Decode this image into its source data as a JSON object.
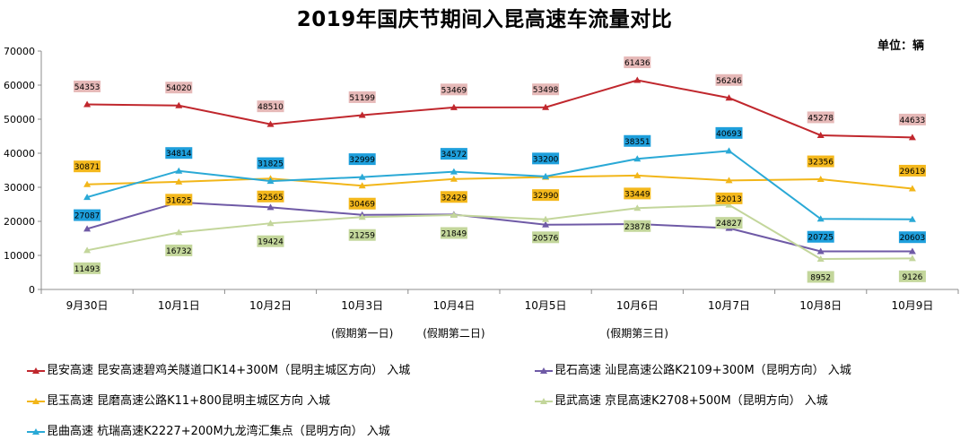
{
  "chart_data": {
    "type": "line",
    "title": "2019年国庆节期间入昆高速车流量对比",
    "unit_label": "单位：辆",
    "ylim": [
      0,
      70000
    ],
    "yticks": [
      0,
      10000,
      20000,
      30000,
      40000,
      50000,
      60000,
      70000
    ],
    "grid": false,
    "legend_position": "bottom",
    "categories": [
      "9月30日",
      "10月1日",
      "10月2日",
      "10月3日",
      "10月4日",
      "10月5日",
      "10月6日",
      "10月7日",
      "10月8日",
      "10月9日"
    ],
    "sub_labels": [
      "",
      "",
      "",
      "(假期第一日)",
      "(假期第二日)",
      "",
      "(假期第三日)",
      "",
      "",
      ""
    ],
    "series": [
      {
        "name": "昆安高速 昆安高速碧鸡关隧道口K14+300M（昆明主城区方向） 入城",
        "color": "#c0272d",
        "label_bg": "#e6b9b8",
        "label_pos": "above",
        "values": [
          54353,
          54020,
          48510,
          51199,
          53469,
          53498,
          61436,
          56246,
          45278,
          44633
        ]
      },
      {
        "name": "昆石高速 汕昆高速公路K2109+300M（昆明方向） 入城",
        "color": "#6f5aa6",
        "label_bg": "",
        "label_pos": "none",
        "values": [
          17800,
          25600,
          24100,
          21900,
          22000,
          19000,
          19200,
          18000,
          11200,
          11200
        ]
      },
      {
        "name": "昆玉高速 昆磨高速公路K11+800昆明主城区方向 入城",
        "color": "#f2b619",
        "label_bg": "#f4b81c",
        "label_pos": "mixed",
        "values": [
          30871,
          31625,
          32565,
          30469,
          32429,
          32990,
          33449,
          32013,
          32356,
          29619
        ]
      },
      {
        "name": "昆武高速 京昆高速K2708+500M（昆明方向） 入城",
        "color": "#c3d69b",
        "label_bg": "#c3d69b",
        "label_pos": "below",
        "values": [
          11493,
          16732,
          19424,
          21259,
          21849,
          20576,
          23878,
          24827,
          8952,
          9126
        ]
      },
      {
        "name": "昆曲高速 杭瑞高速K2227+200M九龙湾汇集点（昆明方向） 入城",
        "color": "#2aa9d6",
        "label_bg": "#1e9fdc",
        "label_pos": "mixed",
        "values": [
          27087,
          34814,
          31825,
          32999,
          34572,
          33200,
          38351,
          40693,
          20725,
          20603
        ]
      }
    ]
  }
}
